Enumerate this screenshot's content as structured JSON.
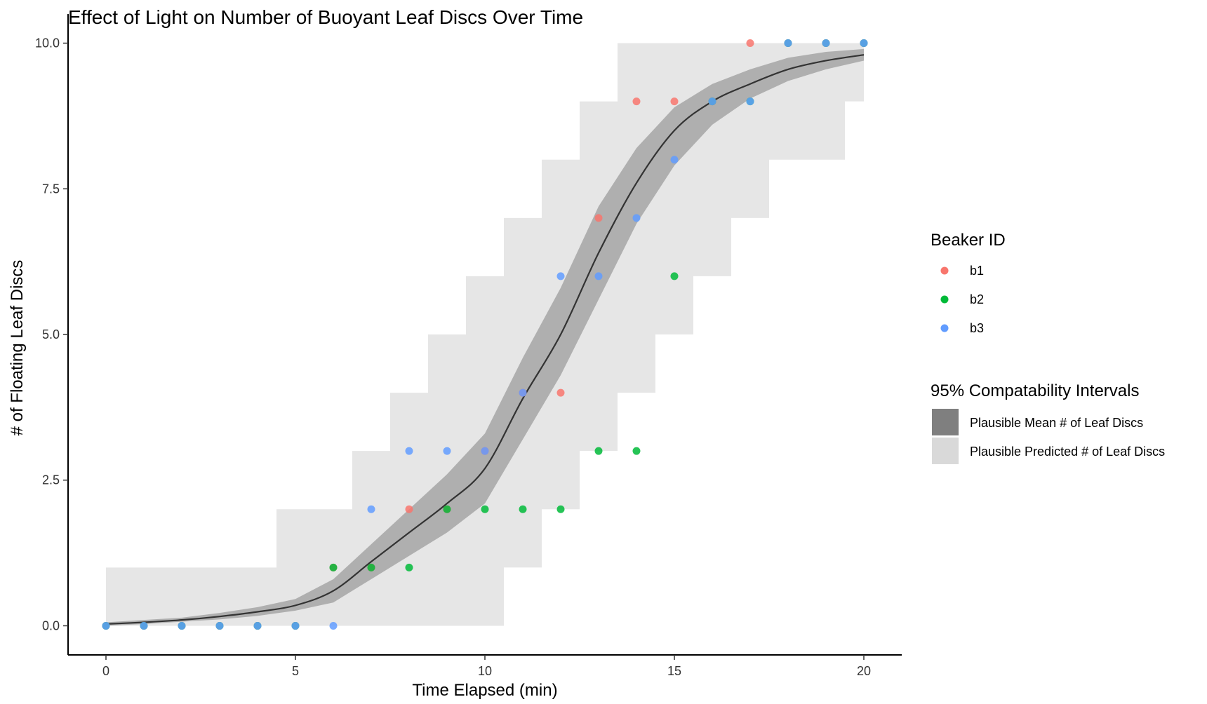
{
  "chart_data": {
    "type": "scatter",
    "title": "Effect of Light on Number of Buoyant Leaf Discs Over Time",
    "xlabel": "Time Elapsed (min)",
    "ylabel": "# of Floating Leaf Discs",
    "xlim": [
      -1,
      21
    ],
    "ylim": [
      -0.5,
      10.5
    ],
    "x_ticks": [
      0,
      5,
      10,
      15,
      20
    ],
    "x_tick_labels": [
      "0",
      "5",
      "10",
      "15",
      "20"
    ],
    "y_ticks": [
      0,
      2.5,
      5,
      7.5,
      10
    ],
    "y_tick_labels": [
      "0.0",
      "2.5",
      "5.0",
      "7.5",
      "10.0"
    ],
    "grid": false,
    "legend_position": "right",
    "colors": {
      "b1": "#F8766D",
      "b2": "#00BA38",
      "b3": "#619CFF",
      "fit_line": "#333333",
      "mean_band": "#a8a8a8",
      "predicted_band": "#e6e6e6"
    },
    "legend_color_title": "Beaker ID",
    "legend_interval_title": "95% Compatability Intervals",
    "legend_interval_labels": [
      "Plausible Mean # of Leaf Discs",
      "Plausible Predicted # of Leaf Discs"
    ],
    "series": [
      {
        "name": "b1",
        "x": [
          0,
          1,
          2,
          3,
          4,
          5,
          6,
          7,
          8,
          9,
          10,
          11,
          12,
          13,
          14,
          15,
          16,
          17,
          18,
          19,
          20
        ],
        "y": [
          0,
          0,
          0,
          0,
          0,
          0,
          1,
          1,
          2,
          2,
          3,
          4,
          4,
          7,
          9,
          9,
          9,
          10,
          10,
          10,
          10
        ]
      },
      {
        "name": "b2",
        "x": [
          0,
          1,
          2,
          3,
          4,
          5,
          6,
          7,
          8,
          9,
          10,
          11,
          12,
          13,
          14,
          15,
          16,
          17,
          18,
          19,
          20
        ],
        "y": [
          0,
          0,
          0,
          0,
          0,
          0,
          1,
          1,
          1,
          2,
          2,
          2,
          2,
          3,
          3,
          6,
          9,
          9,
          10,
          10,
          10
        ]
      },
      {
        "name": "b3",
        "x": [
          0,
          1,
          2,
          3,
          4,
          5,
          6,
          7,
          8,
          9,
          10,
          11,
          12,
          13,
          14,
          15,
          16,
          17,
          18,
          19,
          20
        ],
        "y": [
          0,
          0,
          0,
          0,
          0,
          0,
          0,
          2,
          3,
          3,
          3,
          4,
          6,
          6,
          7,
          8,
          9,
          9,
          10,
          10,
          10
        ]
      }
    ],
    "fit": {
      "x": [
        0,
        1,
        2,
        3,
        4,
        5,
        6,
        7,
        8,
        9,
        10,
        11,
        12,
        13,
        14,
        15,
        16,
        17,
        18,
        19,
        20
      ],
      "y": [
        0.03,
        0.06,
        0.1,
        0.16,
        0.24,
        0.35,
        0.6,
        1.1,
        1.6,
        2.1,
        2.7,
        3.9,
        5.0,
        6.4,
        7.6,
        8.5,
        9.0,
        9.3,
        9.55,
        9.7,
        9.8
      ],
      "mean_lower": [
        0,
        0.03,
        0.07,
        0.11,
        0.17,
        0.26,
        0.4,
        0.8,
        1.2,
        1.6,
        2.1,
        3.2,
        4.3,
        5.6,
        6.9,
        7.9,
        8.6,
        9.05,
        9.35,
        9.55,
        9.7
      ],
      "mean_upper": [
        0.06,
        0.1,
        0.14,
        0.22,
        0.32,
        0.46,
        0.8,
        1.4,
        2.0,
        2.6,
        3.3,
        4.6,
        5.8,
        7.2,
        8.2,
        8.9,
        9.3,
        9.55,
        9.75,
        9.85,
        9.9
      ]
    },
    "predicted_interval": {
      "x": [
        0,
        1,
        2,
        3,
        4,
        5,
        6,
        7,
        8,
        9,
        10,
        11,
        12,
        13,
        14,
        15,
        16,
        17,
        18,
        19,
        20
      ],
      "lower": [
        0,
        0,
        0,
        0,
        0,
        0,
        0,
        0,
        0,
        0,
        0,
        1,
        2,
        3,
        4,
        5,
        6,
        7,
        8,
        8,
        9
      ],
      "upper": [
        1,
        1,
        1,
        1,
        1,
        2,
        2,
        3,
        4,
        5,
        6,
        7,
        8,
        9,
        10,
        10,
        10,
        10,
        10,
        10,
        10
      ]
    }
  }
}
